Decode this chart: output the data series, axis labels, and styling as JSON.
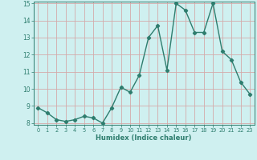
{
  "x": [
    0,
    1,
    2,
    3,
    4,
    5,
    6,
    7,
    8,
    9,
    10,
    11,
    12,
    13,
    14,
    15,
    16,
    17,
    18,
    19,
    20,
    21,
    22,
    23
  ],
  "y": [
    8.9,
    8.6,
    8.2,
    8.1,
    8.2,
    8.4,
    8.3,
    8.0,
    8.9,
    10.1,
    9.8,
    10.8,
    13.0,
    13.7,
    11.1,
    15.0,
    14.6,
    13.3,
    13.3,
    15.0,
    12.2,
    11.7,
    10.4,
    9.7
  ],
  "xlabel": "Humidex (Indice chaleur)",
  "ylim": [
    8,
    15
  ],
  "xlim": [
    -0.5,
    23.5
  ],
  "yticks": [
    8,
    9,
    10,
    11,
    12,
    13,
    14,
    15
  ],
  "xticks": [
    0,
    1,
    2,
    3,
    4,
    5,
    6,
    7,
    8,
    9,
    10,
    11,
    12,
    13,
    14,
    15,
    16,
    17,
    18,
    19,
    20,
    21,
    22,
    23
  ],
  "line_color": "#2e7d6e",
  "bg_color": "#cff0f0",
  "grid_color": "#d4aaaa",
  "marker": "D",
  "marker_size": 2.2,
  "line_width": 1.0
}
